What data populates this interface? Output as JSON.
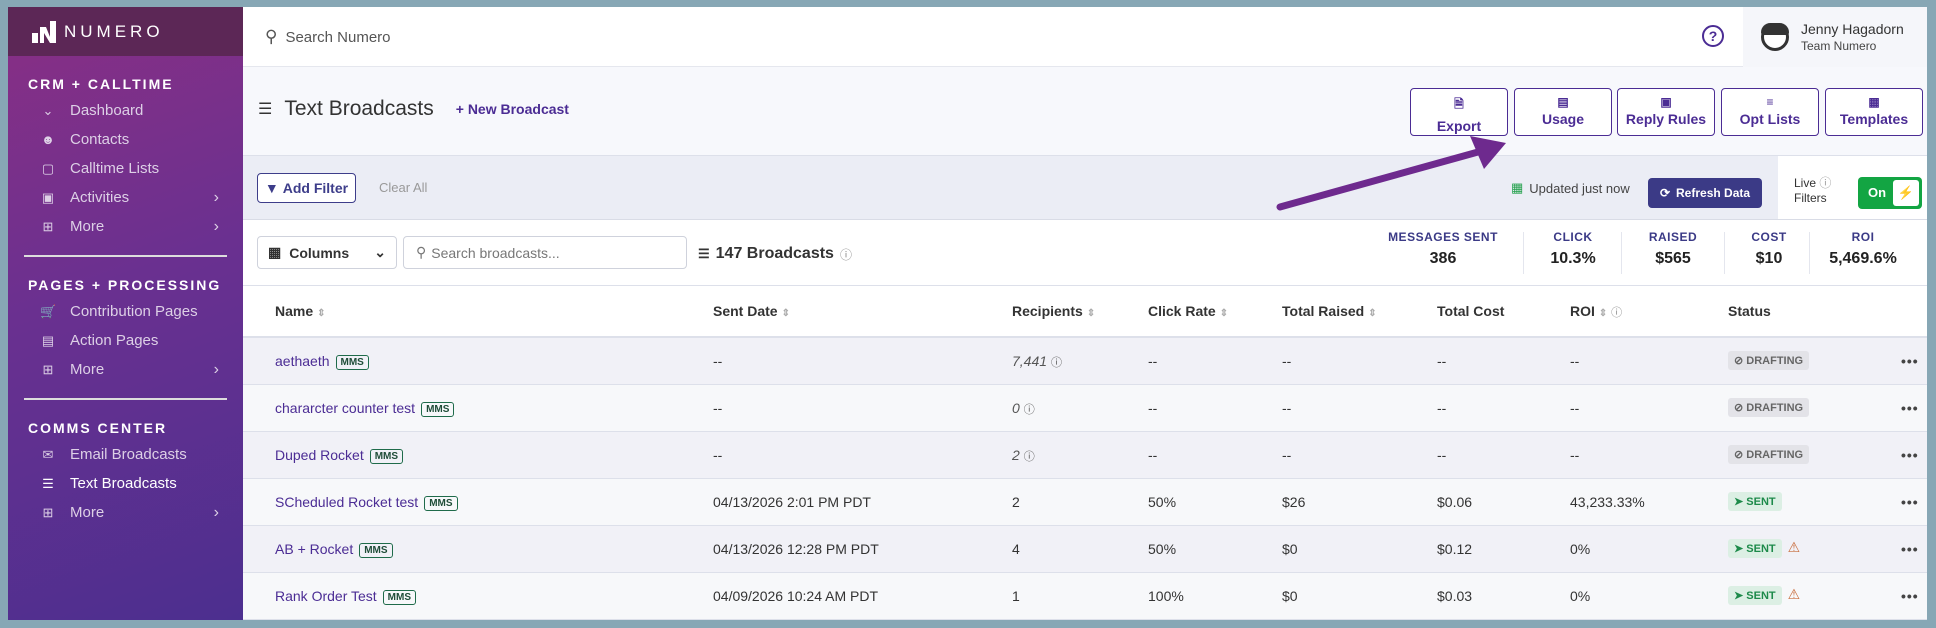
{
  "brand": "NUMERO",
  "sidebar": {
    "sections": [
      {
        "title": "CRM + CALLTIME",
        "items": [
          {
            "label": "Dashboard",
            "icon": "chart-icon"
          },
          {
            "label": "Contacts",
            "icon": "people-icon"
          },
          {
            "label": "Calltime Lists",
            "icon": "cast-icon"
          },
          {
            "label": "Activities",
            "icon": "library-icon"
          },
          {
            "label": "More",
            "icon": "add-box-icon"
          }
        ]
      },
      {
        "title": "PAGES + PROCESSING",
        "items": [
          {
            "label": "Contribution Pages",
            "icon": "cart-icon"
          },
          {
            "label": "Action Pages",
            "icon": "clipboard-icon"
          },
          {
            "label": "More",
            "icon": "add-box-icon"
          }
        ]
      },
      {
        "title": "COMMS CENTER",
        "items": [
          {
            "label": "Email Broadcasts",
            "icon": "email-icon"
          },
          {
            "label": "Text Broadcasts",
            "icon": "message-icon"
          },
          {
            "label": "More",
            "icon": "add-box-icon"
          }
        ]
      }
    ]
  },
  "topbar": {
    "search_placeholder": "Search Numero",
    "user_name": "Jenny Hagadorn",
    "user_team": "Team Numero"
  },
  "header": {
    "title": "Text Broadcasts",
    "new_label": "+ New Broadcast",
    "buttons": [
      "Export",
      "Usage",
      "Reply Rules",
      "Opt Lists",
      "Templates"
    ]
  },
  "filters": {
    "add_label": "Add Filter",
    "clear_label": "Clear All",
    "updated": "Updated just now",
    "refresh_label": "Refresh Data",
    "live_label1": "Live",
    "live_label2": "Filters",
    "toggle_label": "On"
  },
  "toolbar": {
    "columns_label": "Columns",
    "search_placeholder": "Search broadcasts...",
    "count": "147 Broadcasts"
  },
  "stats": [
    {
      "label": "MESSAGES SENT",
      "value": "386"
    },
    {
      "label": "CLICK",
      "value": "10.3%"
    },
    {
      "label": "RAISED",
      "value": "$565"
    },
    {
      "label": "COST",
      "value": "$10"
    },
    {
      "label": "ROI",
      "value": "5,469.6%"
    }
  ],
  "table": {
    "headers": [
      "Name",
      "Sent Date",
      "Recipients",
      "Click Rate",
      "Total Raised",
      "Total Cost",
      "ROI",
      "Status"
    ],
    "rows": [
      {
        "name": "aethaeth",
        "tag": "MMS",
        "date": "--",
        "recipients": "7,441",
        "click": "--",
        "raised": "--",
        "cost": "--",
        "roi": "--",
        "status": "DRAFTING"
      },
      {
        "name": "chararcter counter test",
        "tag": "MMS",
        "date": "--",
        "recipients": "0",
        "click": "--",
        "raised": "--",
        "cost": "--",
        "roi": "--",
        "status": "DRAFTING"
      },
      {
        "name": "Duped Rocket",
        "tag": "MMS",
        "date": "--",
        "recipients": "2",
        "click": "--",
        "raised": "--",
        "cost": "--",
        "roi": "--",
        "status": "DRAFTING"
      },
      {
        "name": "SCheduled Rocket test",
        "tag": "MMS",
        "date": "04/13/2026 2:01 PM PDT",
        "recipients": "2",
        "click": "50%",
        "raised": "$26",
        "cost": "$0.06",
        "roi": "43,233.33%",
        "status": "SENT"
      },
      {
        "name": "AB + Rocket",
        "tag": "MMS",
        "date": "04/13/2026 12:28 PM PDT",
        "recipients": "4",
        "click": "50%",
        "raised": "$0",
        "cost": "$0.12",
        "roi": "0%",
        "status": "SENT",
        "warning": true
      },
      {
        "name": "Rank Order Test",
        "tag": "MMS",
        "date": "04/09/2026 10:24 AM PDT",
        "recipients": "1",
        "click": "100%",
        "raised": "$0",
        "cost": "$0.03",
        "roi": "0%",
        "status": "SENT",
        "warning": true
      }
    ]
  }
}
